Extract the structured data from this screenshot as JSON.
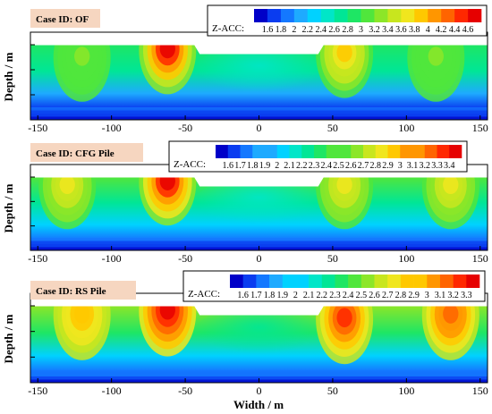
{
  "xlabel": "Width / m",
  "chart_data": [
    {
      "type": "heatmap",
      "case_label": "Case ID: OF",
      "legend_title": "Z-ACC:",
      "legend_levels": [
        1.6,
        1.8,
        2,
        2.2,
        2.4,
        2.6,
        2.8,
        3,
        3.2,
        3.4,
        3.6,
        3.8,
        4,
        4.2,
        4.4,
        4.6
      ],
      "ylabel": "Depth / m",
      "xlim": [
        -155,
        155
      ],
      "xticks": [
        -150,
        -100,
        -50,
        0,
        50,
        100,
        150
      ],
      "cut_x": [
        -40,
        40
      ],
      "hotspots": [
        {
          "x": -62,
          "depth": 0.05,
          "value": 4.6
        },
        {
          "x": 58,
          "depth": 0.1,
          "value": 3.8
        },
        {
          "x": -120,
          "depth": 0.15,
          "value": 3.2
        },
        {
          "x": 120,
          "depth": 0.15,
          "value": 3.2
        }
      ],
      "surface_value": 3.0,
      "bottom_value": 1.6
    },
    {
      "type": "heatmap",
      "case_label": "Case ID: CFG Pile",
      "legend_title": "Z-ACC:",
      "legend_levels": [
        1.6,
        1.7,
        1.8,
        1.9,
        2,
        2.1,
        2.2,
        2.3,
        2.4,
        2.5,
        2.6,
        2.7,
        2.8,
        2.9,
        3,
        3.1,
        3.2,
        3.3,
        3.4
      ],
      "ylabel": "Depth / m",
      "xlim": [
        -155,
        155
      ],
      "xticks": [
        -150,
        -100,
        -50,
        0,
        50,
        100,
        150
      ],
      "cut_x": [
        -40,
        40
      ],
      "hotspots": [
        {
          "x": -62,
          "depth": 0.05,
          "value": 3.4
        },
        {
          "x": 58,
          "depth": 0.1,
          "value": 2.8
        },
        {
          "x": -130,
          "depth": 0.1,
          "value": 2.8
        },
        {
          "x": 130,
          "depth": 0.1,
          "value": 2.8
        }
      ],
      "surface_value": 2.5,
      "bottom_value": 1.6
    },
    {
      "type": "heatmap",
      "case_label": "Case ID: RS Pile",
      "legend_title": "Z-ACC:",
      "legend_levels": [
        1.6,
        1.7,
        1.8,
        1.9,
        2,
        2.1,
        2.2,
        2.3,
        2.4,
        2.5,
        2.6,
        2.7,
        2.8,
        2.9,
        3,
        3.1,
        3.2,
        3.3
      ],
      "ylabel": "Depth / m",
      "xlim": [
        -155,
        155
      ],
      "xticks": [
        -150,
        -100,
        -50,
        0,
        50,
        100,
        150
      ],
      "cut_x": [
        -40,
        40
      ],
      "hotspots": [
        {
          "x": -62,
          "depth": 0.05,
          "value": 3.3
        },
        {
          "x": 58,
          "depth": 0.15,
          "value": 3.2
        },
        {
          "x": 130,
          "depth": 0.1,
          "value": 3.1
        },
        {
          "x": -120,
          "depth": 0.1,
          "value": 2.9
        }
      ],
      "surface_value": 2.6,
      "bottom_value": 1.6
    }
  ],
  "colors": [
    "#0000c8",
    "#0a3cf0",
    "#1478ff",
    "#1eaaff",
    "#00d2ff",
    "#00e6c8",
    "#00e696",
    "#1ee664",
    "#50e63c",
    "#8ce628",
    "#c8e61e",
    "#f0e61e",
    "#ffc800",
    "#ff9600",
    "#ff6400",
    "#ff2800",
    "#e60000"
  ]
}
